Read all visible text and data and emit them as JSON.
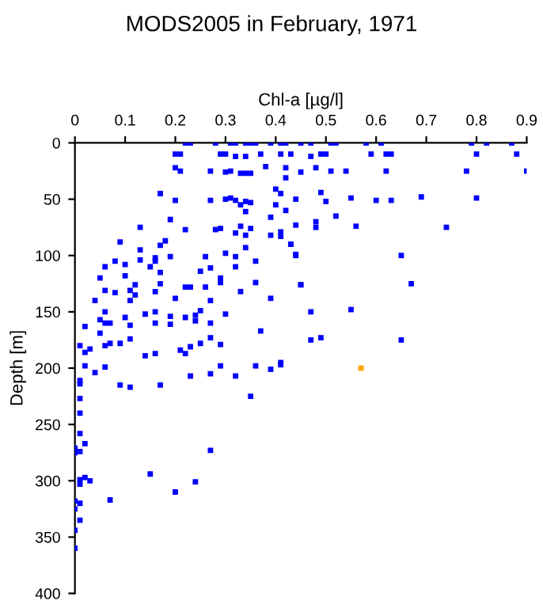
{
  "chart_data": {
    "type": "scatter",
    "title": "MODS2005 in February, 1971",
    "xlabel": "Chl-a [µg/l]",
    "ylabel": "Depth [m]",
    "xlim": [
      0,
      0.9
    ],
    "xticks": [
      0,
      0.1,
      0.2,
      0.3,
      0.4,
      0.5,
      0.6,
      0.7,
      0.8,
      0.9
    ],
    "ylim": [
      400,
      0
    ],
    "yticks": [
      0,
      50,
      100,
      150,
      200,
      250,
      300,
      350,
      400
    ],
    "marker": "square",
    "grid": false,
    "legend": false,
    "series": [
      {
        "color": "#0000ff",
        "x": [
          0.22,
          0.23,
          0.28,
          0.31,
          0.32,
          0.34,
          0.35,
          0.36,
          0.39,
          0.41,
          0.42,
          0.45,
          0.47,
          0.51,
          0.52,
          0.58,
          0.61,
          0.79,
          0.82,
          0.87,
          0.2,
          0.21,
          0.29,
          0.3,
          0.32,
          0.34,
          0.37,
          0.41,
          0.43,
          0.47,
          0.49,
          0.5,
          0.59,
          0.62,
          0.63,
          0.8,
          0.88,
          0.2,
          0.21,
          0.27,
          0.3,
          0.31,
          0.33,
          0.34,
          0.35,
          0.38,
          0.42,
          0.42,
          0.45,
          0.48,
          0.51,
          0.54,
          0.62,
          0.78,
          0.9,
          0.17,
          0.2,
          0.27,
          0.3,
          0.31,
          0.32,
          0.33,
          0.34,
          0.35,
          0.34,
          0.4,
          0.41,
          0.44,
          0.42,
          0.4,
          0.49,
          0.5,
          0.55,
          0.6,
          0.63,
          0.69,
          0.8,
          0.52,
          0.48,
          0.48,
          0.56,
          0.74,
          0.43,
          0.44,
          0.65,
          0.67,
          0.45,
          0.47,
          0.55,
          0.47,
          0.49,
          0.65,
          0.13,
          0.19,
          0.22,
          0.28,
          0.29,
          0.32,
          0.33,
          0.34,
          0.35,
          0.39,
          0.39,
          0.41,
          0.41,
          0.44,
          0.43,
          0.09,
          0.17,
          0.18,
          0.13,
          0.16,
          0.16,
          0.19,
          0.26,
          0.3,
          0.32,
          0.34,
          0.36,
          0.44,
          0.08,
          0.13,
          0.15,
          0.06,
          0.1,
          0.17,
          0.27,
          0.32,
          0.05,
          0.1,
          0.29,
          0.25,
          0.29,
          0.12,
          0.17,
          0.36,
          0.45,
          0.06,
          0.08,
          0.11,
          0.12,
          0.16,
          0.2,
          0.22,
          0.23,
          0.26,
          0.27,
          0.33,
          0.39,
          0.04,
          0.11,
          0.25,
          0.06,
          0.14,
          0.16,
          0.19,
          0.22,
          0.24,
          0.24,
          0.3,
          0.1,
          0.05,
          0.06,
          0.07,
          0.11,
          0.16,
          0.19,
          0.27,
          0.02,
          0.37,
          0.05,
          0.27,
          0.01,
          0.06,
          0.07,
          0.09,
          0.11,
          0.25,
          0.23,
          0.29,
          0.02,
          0.03,
          0.14,
          0.16,
          0.21,
          0.22,
          0.41,
          0.02,
          0.04,
          0.06,
          0.01,
          0.01,
          0.09,
          0.11,
          0.17,
          0.23,
          0.27,
          0.29,
          0.32,
          0.35,
          0.36,
          0.39,
          0.41,
          0.01,
          0.01,
          0.01,
          0.02,
          0.0,
          0.0,
          0.01,
          0.27,
          0.01,
          0.02,
          0.03,
          0.01,
          0.15,
          0.24,
          0.2,
          0.07,
          0.0,
          0.01,
          0.0,
          0.01,
          0.0,
          0.0
        ],
        "values": [
          0,
          0,
          0,
          0,
          0,
          0,
          0,
          0,
          0,
          0,
          0,
          0,
          0,
          0,
          0,
          0,
          0,
          0,
          0,
          0,
          10,
          10,
          10,
          10,
          12,
          12,
          10,
          10,
          10,
          12,
          10,
          10,
          10,
          10,
          10,
          10,
          10,
          22,
          25,
          25,
          26,
          25,
          27,
          27,
          27,
          21,
          22,
          31,
          26,
          22,
          25,
          25,
          25,
          25,
          25,
          45,
          51,
          51,
          50,
          49,
          51,
          55,
          52,
          53,
          61,
          41,
          45,
          50,
          60,
          55,
          44,
          52,
          49,
          51,
          51,
          48,
          49,
          65,
          70,
          75,
          74,
          75,
          90,
          99,
          100,
          125,
          126,
          150,
          148,
          175,
          173,
          175,
          75,
          68,
          77,
          77,
          76,
          80,
          74,
          82,
          76,
          66,
          82,
          79,
          83,
          73,
          90,
          88,
          91,
          87,
          95,
          102,
          105,
          101,
          101,
          98,
          101,
          93,
          105,
          100,
          105,
          104,
          110,
          110,
          108,
          115,
          111,
          110,
          120,
          118,
          120,
          114,
          124,
          126,
          125,
          124,
          126,
          131,
          133,
          131,
          135,
          132,
          138,
          128,
          128,
          128,
          140,
          132,
          138,
          140,
          140,
          149,
          150,
          152,
          150,
          154,
          155,
          153,
          158,
          152,
          155,
          157,
          160,
          160,
          162,
          160,
          161,
          160,
          163,
          167,
          169,
          173,
          180,
          180,
          178,
          178,
          174,
          178,
          181,
          179,
          186,
          183,
          189,
          187,
          184,
          187,
          195,
          198,
          204,
          199,
          211,
          214,
          215,
          217,
          215,
          207,
          205,
          198,
          207,
          225,
          198,
          201,
          197,
          227,
          240,
          258,
          267,
          271,
          275,
          274,
          273,
          299,
          297,
          300,
          303,
          294,
          301,
          310,
          317,
          318,
          320,
          325,
          335,
          344,
          360
        ]
      },
      {
        "color": "#ffa500",
        "x": [
          0.57
        ],
        "values": [
          200
        ]
      }
    ]
  }
}
